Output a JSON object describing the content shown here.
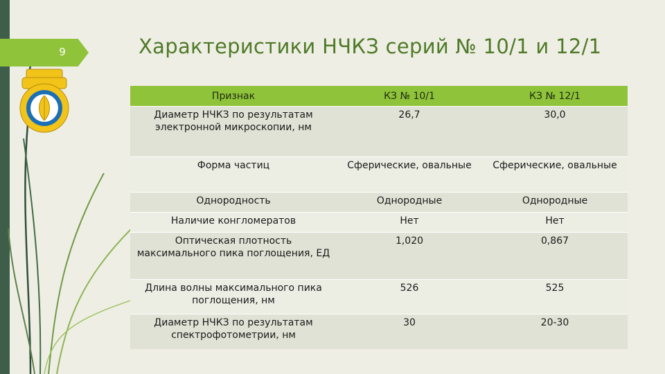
{
  "slide": {
    "page_number": "9",
    "title": "Характеристики НЧКЗ серий № 10/1 и 12/1"
  },
  "logo": {
    "icon": "university-emblem-icon",
    "colors": [
      "#f2c318",
      "#1b6fb4",
      "#ffffff"
    ]
  },
  "colors": {
    "accent": "#8fc33a",
    "left_bar": "#3f5e49",
    "title": "#4f7a28"
  },
  "table": {
    "headers": [
      "Признак",
      "КЗ № 10/1",
      "КЗ № 12/1"
    ],
    "rows": [
      [
        "Диаметр НЧКЗ по результатам электронной микроскопии, нм",
        "26,7",
        "30,0"
      ],
      [
        "Форма частиц",
        "Сферические, овальные",
        "Сферические, овальные"
      ],
      [
        "Однородность",
        "Однородные",
        "Однородные"
      ],
      [
        "Наличие конгломератов",
        "Нет",
        "Нет"
      ],
      [
        "Оптическая плотность максимального пика поглощения, ЕД",
        "1,020",
        "0,867"
      ],
      [
        "Длина волны максимального пика поглощения, нм",
        "526",
        "525"
      ],
      [
        "Диаметр НЧКЗ по результатам спектрофотометрии, нм",
        "30",
        "20-30"
      ]
    ]
  }
}
